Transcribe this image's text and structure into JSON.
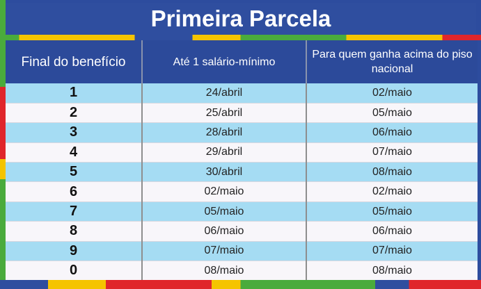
{
  "title": "Primeira Parcela",
  "headers": [
    "Final do benefício",
    "Até 1 salário-mínimo",
    "Para quem ganha acima do piso nacional"
  ],
  "rows": [
    [
      "1",
      "24/abril",
      "02/maio"
    ],
    [
      "2",
      "25/abril",
      "05/maio"
    ],
    [
      "3",
      "28/abril",
      "06/maio"
    ],
    [
      "4",
      "29/abril",
      "07/maio"
    ],
    [
      "5",
      "30/abril",
      "08/maio"
    ],
    [
      "6",
      "02/maio",
      "02/maio"
    ],
    [
      "7",
      "05/maio",
      "05/maio"
    ],
    [
      "8",
      "06/maio",
      "06/maio"
    ],
    [
      "9",
      "07/maio",
      "07/maio"
    ],
    [
      "0",
      "08/maio",
      "08/maio"
    ]
  ],
  "colors": {
    "header": "#2c4a9a",
    "row_alt": "#a5dcf3",
    "row": "#f8f6fa"
  }
}
